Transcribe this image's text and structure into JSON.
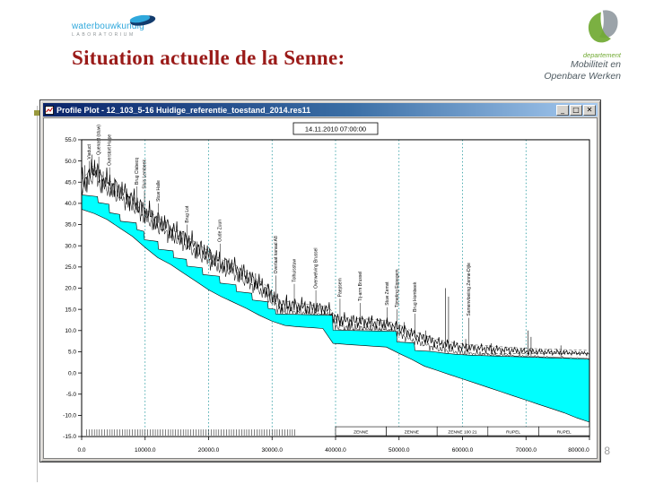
{
  "slide": {
    "title": "Situation actuelle de la Senne:",
    "title_color": "#9A1A18",
    "page_number": "8"
  },
  "logo_left": {
    "name": "waterbouwkundig",
    "sub": "LABORATORIUM",
    "accent_blue": "#2FA8DC"
  },
  "logo_right": {
    "dept": "departement",
    "line1": "Mobiliteit en",
    "line2": "Openbare Werken",
    "accent_green": "#70A932"
  },
  "window": {
    "title": "Profile Plot - 12_103_5-16 Huidige_referentie_toestand_2014.res11",
    "minimize_label": "_",
    "maximize_label": "□",
    "close_label": "✕"
  },
  "chart_data": {
    "type": "area",
    "title": "14.11.2010 07:00:00",
    "xlabel": "",
    "ylabel": "",
    "xlim": [
      0,
      80000
    ],
    "ylim": [
      -15,
      55
    ],
    "x_ticks": [
      0,
      10000,
      20000,
      30000,
      40000,
      50000,
      60000,
      70000,
      80000
    ],
    "y_ticks": [
      -15,
      -10,
      -5,
      0,
      5,
      10,
      15,
      20,
      25,
      30,
      35,
      40,
      45,
      50,
      55
    ],
    "grid": "vertical-dashed",
    "legend": "none",
    "colors": {
      "water": "#00FFFF",
      "grid": "#00898F",
      "line": "#000000"
    },
    "series": [
      {
        "name": "water_surface",
        "points": [
          [
            0,
            42
          ],
          [
            2500,
            41.6
          ],
          [
            2600,
            40.2
          ],
          [
            4300,
            39.8
          ],
          [
            4400,
            37.8
          ],
          [
            6000,
            37.4
          ],
          [
            6100,
            35.8
          ],
          [
            8600,
            35.4
          ],
          [
            8700,
            33.8
          ],
          [
            9800,
            33.4
          ],
          [
            9900,
            31.4
          ],
          [
            12000,
            31
          ],
          [
            12100,
            29.2
          ],
          [
            14400,
            28.8
          ],
          [
            14500,
            27.2
          ],
          [
            16500,
            26.8
          ],
          [
            16600,
            25.2
          ],
          [
            19000,
            24.8
          ],
          [
            19100,
            23.2
          ],
          [
            21700,
            22.8
          ],
          [
            21800,
            21.2
          ],
          [
            24300,
            20.8
          ],
          [
            24400,
            19.2
          ],
          [
            26800,
            18.8
          ],
          [
            26900,
            17.2
          ],
          [
            29300,
            16.8
          ],
          [
            29400,
            15.2
          ],
          [
            30500,
            15
          ],
          [
            30600,
            13.9
          ],
          [
            34000,
            13.8
          ],
          [
            37000,
            13.7
          ],
          [
            39500,
            13.6
          ],
          [
            39600,
            10.1
          ],
          [
            43000,
            10
          ],
          [
            46500,
            9.9
          ],
          [
            49600,
            9.8
          ],
          [
            49700,
            7.3
          ],
          [
            52400,
            7.1
          ],
          [
            52500,
            5.3
          ],
          [
            55000,
            5.1
          ],
          [
            57000,
            4.7
          ],
          [
            59000,
            4.4
          ],
          [
            61000,
            4.2
          ],
          [
            63000,
            4.1
          ],
          [
            65000,
            4
          ],
          [
            67000,
            3.9
          ],
          [
            69000,
            3.8
          ],
          [
            71000,
            3.7
          ],
          [
            73000,
            3.6
          ],
          [
            75000,
            3.5
          ],
          [
            77000,
            3.4
          ],
          [
            79000,
            3.3
          ],
          [
            80000,
            3.2
          ]
        ]
      },
      {
        "name": "bed_level",
        "points": [
          [
            0,
            38.6
          ],
          [
            2000,
            37.6
          ],
          [
            4000,
            36.2
          ],
          [
            6000,
            34.2
          ],
          [
            8000,
            32.2
          ],
          [
            10000,
            29.6
          ],
          [
            12000,
            27.2
          ],
          [
            14000,
            25.6
          ],
          [
            16000,
            23.6
          ],
          [
            18000,
            21.6
          ],
          [
            20000,
            19.6
          ],
          [
            22000,
            18
          ],
          [
            24000,
            16.6
          ],
          [
            26000,
            15.2
          ],
          [
            28000,
            13.6
          ],
          [
            30000,
            12.2
          ],
          [
            32000,
            11.2
          ],
          [
            34000,
            10.9
          ],
          [
            36000,
            10.7
          ],
          [
            38000,
            10.5
          ],
          [
            39600,
            7
          ],
          [
            42000,
            6.7
          ],
          [
            44000,
            6.5
          ],
          [
            46000,
            6.3
          ],
          [
            48000,
            6.1
          ],
          [
            50000,
            4.6
          ],
          [
            52000,
            3.2
          ],
          [
            54000,
            1.6
          ],
          [
            56000,
            0.6
          ],
          [
            58000,
            -0.4
          ],
          [
            60000,
            -1.4
          ],
          [
            62000,
            -2.4
          ],
          [
            64000,
            -3.4
          ],
          [
            66000,
            -4.4
          ],
          [
            68000,
            -5.4
          ],
          [
            70000,
            -6.4
          ],
          [
            72000,
            -7.4
          ],
          [
            74000,
            -8.4
          ],
          [
            76000,
            -9.4
          ],
          [
            78000,
            -10.6
          ],
          [
            80000,
            -11.6
          ]
        ]
      },
      {
        "name": "terrain",
        "points": [
          [
            0,
            45
          ],
          [
            1000,
            46.5
          ],
          [
            2000,
            48.5
          ],
          [
            3000,
            46
          ],
          [
            4000,
            45
          ],
          [
            5000,
            44
          ],
          [
            6000,
            43
          ],
          [
            7000,
            42
          ],
          [
            8000,
            41
          ],
          [
            9000,
            39.5
          ],
          [
            10000,
            38
          ],
          [
            11000,
            37
          ],
          [
            12000,
            36
          ],
          [
            13000,
            35
          ],
          [
            14000,
            34
          ],
          [
            15000,
            33
          ],
          [
            16000,
            32
          ],
          [
            17000,
            31
          ],
          [
            18000,
            30
          ],
          [
            19000,
            29
          ],
          [
            20000,
            28
          ],
          [
            21000,
            27
          ],
          [
            22000,
            26
          ],
          [
            23000,
            25.5
          ],
          [
            24000,
            25
          ],
          [
            25000,
            24
          ],
          [
            26000,
            23
          ],
          [
            27000,
            22
          ],
          [
            28000,
            21
          ],
          [
            29000,
            20
          ],
          [
            30000,
            18.2
          ],
          [
            31000,
            16.6
          ],
          [
            32000,
            16.2
          ],
          [
            33000,
            16
          ],
          [
            34000,
            15.8
          ],
          [
            35000,
            15.6
          ],
          [
            36000,
            15.4
          ],
          [
            37000,
            15.2
          ],
          [
            38000,
            15
          ],
          [
            39000,
            14.7
          ],
          [
            40000,
            12.6
          ],
          [
            42000,
            12.3
          ],
          [
            44000,
            12.1
          ],
          [
            46000,
            11.9
          ],
          [
            48000,
            11.6
          ],
          [
            50000,
            10.6
          ],
          [
            52000,
            9.2
          ],
          [
            54000,
            8.2
          ],
          [
            56000,
            7.2
          ],
          [
            58000,
            6.6
          ],
          [
            60000,
            6.1
          ],
          [
            62000,
            5.9
          ],
          [
            64000,
            5.7
          ],
          [
            66000,
            5.5
          ],
          [
            68000,
            5.3
          ],
          [
            70000,
            5.1
          ],
          [
            72000,
            5
          ],
          [
            74000,
            4.9
          ],
          [
            76000,
            4.8
          ],
          [
            78000,
            4.7
          ],
          [
            80000,
            4.6
          ]
        ]
      }
    ],
    "spikes": [
      [
        500,
        49
      ],
      [
        1600,
        51.5
      ],
      [
        2300,
        48
      ],
      [
        3400,
        47.5
      ],
      [
        5200,
        46
      ],
      [
        7100,
        43.5
      ],
      [
        8200,
        41.5
      ],
      [
        11000,
        38.5
      ],
      [
        13200,
        36
      ],
      [
        15600,
        33.5
      ],
      [
        18200,
        31
      ],
      [
        20300,
        29
      ],
      [
        23200,
        27
      ],
      [
        25200,
        25.5
      ],
      [
        27400,
        23.5
      ],
      [
        29500,
        21
      ],
      [
        32300,
        18.5
      ],
      [
        35200,
        17
      ],
      [
        38300,
        16
      ],
      [
        42500,
        13.5
      ],
      [
        45600,
        13
      ],
      [
        50800,
        12
      ],
      [
        54200,
        10
      ],
      [
        57300,
        20
      ],
      [
        57800,
        18
      ],
      [
        60500,
        8
      ],
      [
        64500,
        7
      ],
      [
        70300,
        10
      ],
      [
        70800,
        8.5
      ],
      [
        75500,
        6.5
      ]
    ],
    "structures": [
      {
        "x": 1200,
        "top": 50,
        "label": "Viaduct"
      },
      {
        "x": 2700,
        "top": 51,
        "label": "Quenast (stuw)"
      },
      {
        "x": 4400,
        "top": 48.5,
        "label": "Overstort Hulpe"
      },
      {
        "x": 8700,
        "top": 44,
        "label": "Brug Clabecq"
      },
      {
        "x": 9900,
        "top": 43,
        "label": "Sluis Lembeek"
      },
      {
        "x": 12100,
        "top": 40,
        "label": "Stuw Halle"
      },
      {
        "x": 16600,
        "top": 35,
        "label": "Brug Lot"
      },
      {
        "x": 21800,
        "top": 30.5,
        "label": "Oude Zuun"
      },
      {
        "x": 30600,
        "top": 23,
        "label": "Overlaat kanaal A8"
      },
      {
        "x": 33500,
        "top": 21,
        "label": "Tolhuisstuw"
      },
      {
        "x": 36900,
        "top": 19.5,
        "label": "Overwelving Brussel"
      },
      {
        "x": 40700,
        "top": 17.5,
        "label": "Paepsem"
      },
      {
        "x": 43900,
        "top": 16.5,
        "label": "Tij-arm Brussel"
      },
      {
        "x": 48100,
        "top": 15.5,
        "label": "Stuw Zemst"
      },
      {
        "x": 49700,
        "top": 15,
        "label": "Tijmeting Eppegem"
      },
      {
        "x": 52500,
        "top": 14,
        "label": "Brug Hombeek"
      },
      {
        "x": 61000,
        "top": 13,
        "label": "Samenvloeiing Zenne-Dijle"
      }
    ],
    "level_lines": [
      {
        "y": 4.6,
        "from": 63000,
        "to": 80000
      },
      {
        "y": 10.2,
        "from": 40500,
        "to": 49000
      }
    ],
    "reaches": [
      {
        "from": 40000,
        "to": 48000,
        "label": "ZENNE"
      },
      {
        "from": 48000,
        "to": 56000,
        "label": "ZENNE"
      },
      {
        "from": 56000,
        "to": 64000,
        "label": "ZENNE 100 21"
      },
      {
        "from": 64000,
        "to": 72000,
        "label": "RUPEL"
      },
      {
        "from": 72000,
        "to": 80000,
        "label": "RUPEL"
      }
    ],
    "cross_sections": {
      "from": 800,
      "to": 33600,
      "step": 400
    }
  }
}
